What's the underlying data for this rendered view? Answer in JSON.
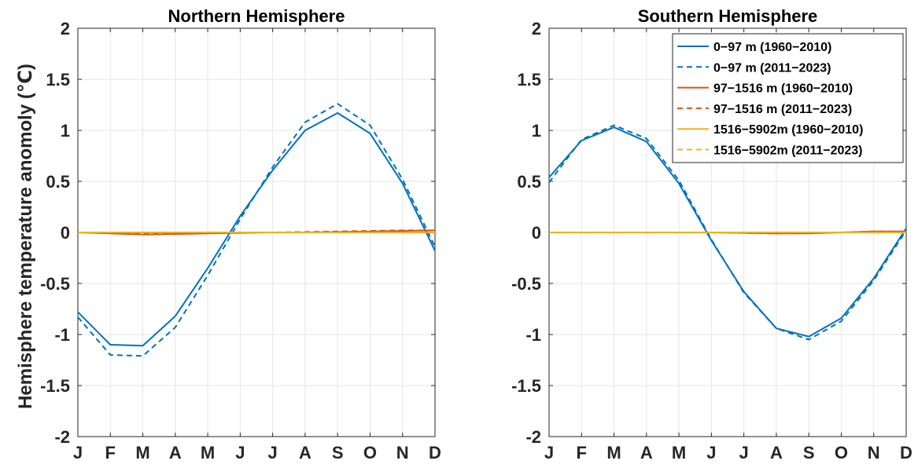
{
  "ylabel": "Hemisphere temperature anomoly (℃)",
  "chart_data": [
    {
      "type": "line",
      "title": "Northern Hemisphere",
      "categories": [
        "J",
        "F",
        "M",
        "A",
        "M",
        "J",
        "J",
        "A",
        "S",
        "O",
        "N",
        "D"
      ],
      "ylim": [
        -2,
        2
      ],
      "yticks": [
        -2,
        -1.5,
        -1,
        -0.5,
        0,
        0.5,
        1,
        1.5,
        2
      ],
      "yticklabels": [
        "-2",
        "-1.5",
        "-1",
        "-0.5",
        "0",
        "0.5",
        "1",
        "1.5",
        "2"
      ],
      "grid": true,
      "legend": "none",
      "series": [
        {
          "name": "0−97 m (1960−2010)",
          "color": "#0072BD",
          "dash": "solid",
          "values": [
            -0.78,
            -1.1,
            -1.11,
            -0.82,
            -0.35,
            0.16,
            0.61,
            1.0,
            1.17,
            0.97,
            0.48,
            -0.18
          ]
        },
        {
          "name": "0−97 m (2011−2023)",
          "color": "#0072BD",
          "dash": "dashed",
          "values": [
            -0.83,
            -1.2,
            -1.21,
            -0.93,
            -0.42,
            0.13,
            0.64,
            1.08,
            1.26,
            1.05,
            0.52,
            -0.14
          ]
        },
        {
          "name": "97−1516 m (1960−2010)",
          "color": "#D95319",
          "dash": "solid",
          "values": [
            0.0,
            -0.01,
            -0.02,
            -0.015,
            -0.01,
            -0.005,
            0.0,
            0.0,
            0.005,
            0.01,
            0.015,
            0.02
          ]
        },
        {
          "name": "97−1516 m (2011−2023)",
          "color": "#D95319",
          "dash": "dashed",
          "values": [
            0.0,
            -0.005,
            -0.01,
            -0.01,
            -0.005,
            0.0,
            0.0,
            0.005,
            0.01,
            0.015,
            0.02,
            0.02
          ]
        },
        {
          "name": "1516−5902m (1960−2010)",
          "color": "#EDB120",
          "dash": "solid",
          "values": [
            0.0,
            0.0,
            0.0,
            0.0,
            0.0,
            0.0,
            0.0,
            0.0,
            0.0,
            0.0,
            0.0,
            0.0
          ]
        },
        {
          "name": "1516−5902m (2011−2023)",
          "color": "#EDB120",
          "dash": "dashed",
          "values": [
            0.0,
            0.0,
            0.0,
            0.0,
            0.0,
            0.0,
            0.0,
            0.0,
            0.0,
            0.0,
            0.0,
            0.0
          ]
        }
      ]
    },
    {
      "type": "line",
      "title": "Southern Hemisphere",
      "categories": [
        "J",
        "F",
        "M",
        "A",
        "M",
        "J",
        "J",
        "A",
        "S",
        "O",
        "N",
        "D"
      ],
      "ylim": [
        -2,
        2
      ],
      "yticks": [
        -2,
        -1.5,
        -1,
        -0.5,
        0,
        0.5,
        1,
        1.5,
        2
      ],
      "yticklabels": [
        "-2",
        "-1.5",
        "-1",
        "-0.5",
        "0",
        "0.5",
        "1",
        "1.5",
        "2"
      ],
      "grid": true,
      "legend": "top-right",
      "series": [
        {
          "name": "0−97 m (1960−2010)",
          "color": "#0072BD",
          "dash": "solid",
          "values": [
            0.54,
            0.9,
            1.03,
            0.89,
            0.48,
            -0.08,
            -0.58,
            -0.94,
            -1.02,
            -0.84,
            -0.45,
            0.04
          ]
        },
        {
          "name": "0−97 m (2011−2023)",
          "color": "#0072BD",
          "dash": "dashed",
          "values": [
            0.49,
            0.91,
            1.05,
            0.92,
            0.51,
            -0.07,
            -0.59,
            -0.94,
            -1.05,
            -0.87,
            -0.47,
            0.02
          ]
        },
        {
          "name": "97−1516 m (1960−2010)",
          "color": "#D95319",
          "dash": "solid",
          "values": [
            0.0,
            0.0,
            0.0,
            0.0,
            0.0,
            0.0,
            -0.005,
            -0.01,
            -0.01,
            0.0,
            0.01,
            0.01
          ]
        },
        {
          "name": "97−1516 m (2011−2023)",
          "color": "#D95319",
          "dash": "dashed",
          "values": [
            0.0,
            0.0,
            0.0,
            0.0,
            0.0,
            0.0,
            -0.005,
            -0.01,
            -0.005,
            0.0,
            0.01,
            0.01
          ]
        },
        {
          "name": "1516−5902m (1960−2010)",
          "color": "#EDB120",
          "dash": "solid",
          "values": [
            0.0,
            0.0,
            0.0,
            0.0,
            0.0,
            0.0,
            0.0,
            0.0,
            0.0,
            0.0,
            0.0,
            0.0
          ]
        },
        {
          "name": "1516−5902m (2011−2023)",
          "color": "#EDB120",
          "dash": "dashed",
          "values": [
            0.0,
            0.0,
            0.0,
            0.0,
            0.0,
            0.0,
            0.0,
            0.0,
            0.0,
            0.0,
            0.0,
            0.0
          ]
        }
      ]
    }
  ]
}
